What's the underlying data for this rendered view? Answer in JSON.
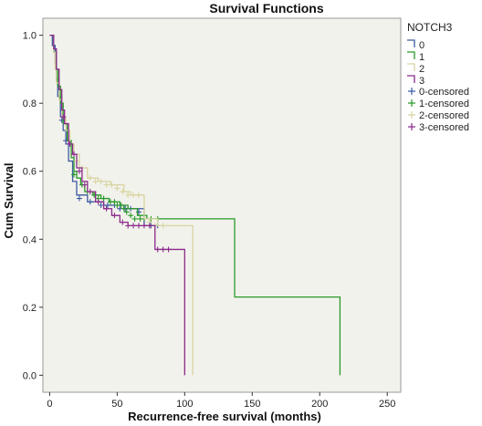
{
  "chart_data": {
    "type": "line",
    "title": "Survival Functions",
    "xlabel": "Recurrence-free survival (months)",
    "ylabel": "Cum Survival",
    "xlim": [
      -5,
      260
    ],
    "ylim": [
      -0.05,
      1.05
    ],
    "x_ticks": [
      0,
      50,
      100,
      150,
      200,
      250
    ],
    "y_ticks": [
      0.0,
      0.2,
      0.4,
      0.6,
      0.8,
      1.0
    ],
    "legend_title": "NOTCH3",
    "legend_position": "right",
    "plot_background": "#f2f2ec",
    "series": [
      {
        "name": "0",
        "censored_name": "0-censored",
        "color": "#3b5aa0",
        "steps": [
          [
            0,
            1.0
          ],
          [
            2,
            0.97
          ],
          [
            4,
            0.92
          ],
          [
            5,
            0.87
          ],
          [
            6,
            0.82
          ],
          [
            8,
            0.76
          ],
          [
            10,
            0.72
          ],
          [
            12,
            0.68
          ],
          [
            14,
            0.63
          ],
          [
            17,
            0.57
          ],
          [
            20,
            0.53
          ],
          [
            28,
            0.51
          ],
          [
            40,
            0.5
          ],
          [
            55,
            0.49
          ],
          [
            62,
            0.49
          ],
          [
            70,
            0.44
          ],
          [
            80,
            0.44
          ]
        ],
        "censor": [
          [
            9,
            0.75
          ],
          [
            12,
            0.69
          ],
          [
            22,
            0.52
          ],
          [
            30,
            0.51
          ],
          [
            38,
            0.5
          ],
          [
            43,
            0.5
          ],
          [
            48,
            0.5
          ],
          [
            52,
            0.49
          ],
          [
            56,
            0.49
          ],
          [
            60,
            0.49
          ],
          [
            66,
            0.48
          ],
          [
            75,
            0.44
          ],
          [
            80,
            0.44
          ]
        ]
      },
      {
        "name": "1",
        "censored_name": "1-censored",
        "color": "#2a9a2a",
        "steps": [
          [
            0,
            1.0
          ],
          [
            3,
            0.95
          ],
          [
            5,
            0.9
          ],
          [
            6,
            0.85
          ],
          [
            8,
            0.8
          ],
          [
            10,
            0.74
          ],
          [
            13,
            0.69
          ],
          [
            16,
            0.64
          ],
          [
            18,
            0.6
          ],
          [
            20,
            0.58
          ],
          [
            23,
            0.56
          ],
          [
            26,
            0.54
          ],
          [
            32,
            0.53
          ],
          [
            38,
            0.52
          ],
          [
            44,
            0.51
          ],
          [
            52,
            0.5
          ],
          [
            58,
            0.49
          ],
          [
            65,
            0.47
          ],
          [
            72,
            0.46
          ],
          [
            137,
            0.23
          ],
          [
            215,
            0.0
          ]
        ],
        "censor": [
          [
            18,
            0.59
          ],
          [
            24,
            0.56
          ],
          [
            28,
            0.54
          ],
          [
            33,
            0.53
          ],
          [
            36,
            0.52
          ],
          [
            40,
            0.52
          ],
          [
            45,
            0.51
          ],
          [
            48,
            0.51
          ],
          [
            50,
            0.5
          ],
          [
            53,
            0.5
          ],
          [
            55,
            0.49
          ],
          [
            57,
            0.48
          ],
          [
            60,
            0.47
          ],
          [
            63,
            0.46
          ],
          [
            67,
            0.46
          ],
          [
            70,
            0.46
          ],
          [
            75,
            0.46
          ],
          [
            80,
            0.46
          ]
        ]
      },
      {
        "name": "2",
        "censored_name": "2-censored",
        "color": "#d8d4a0",
        "steps": [
          [
            0,
            1.0
          ],
          [
            3,
            0.95
          ],
          [
            4,
            0.9
          ],
          [
            5,
            0.86
          ],
          [
            7,
            0.81
          ],
          [
            9,
            0.76
          ],
          [
            12,
            0.72
          ],
          [
            15,
            0.68
          ],
          [
            18,
            0.65
          ],
          [
            22,
            0.61
          ],
          [
            28,
            0.58
          ],
          [
            36,
            0.57
          ],
          [
            45,
            0.56
          ],
          [
            55,
            0.54
          ],
          [
            60,
            0.53
          ],
          [
            68,
            0.53
          ],
          [
            70,
            0.46
          ],
          [
            80,
            0.44
          ],
          [
            106,
            0.0
          ]
        ],
        "censor": [
          [
            20,
            0.63
          ],
          [
            24,
            0.61
          ],
          [
            30,
            0.58
          ],
          [
            34,
            0.57
          ],
          [
            38,
            0.57
          ],
          [
            42,
            0.56
          ],
          [
            46,
            0.56
          ],
          [
            50,
            0.55
          ],
          [
            54,
            0.54
          ],
          [
            58,
            0.53
          ],
          [
            62,
            0.53
          ],
          [
            66,
            0.53
          ],
          [
            74,
            0.45
          ],
          [
            78,
            0.44
          ],
          [
            84,
            0.44
          ]
        ]
      },
      {
        "name": "3",
        "censored_name": "3-censored",
        "color": "#8a2a8a",
        "steps": [
          [
            0,
            1.0
          ],
          [
            3,
            0.96
          ],
          [
            5,
            0.9
          ],
          [
            7,
            0.84
          ],
          [
            9,
            0.78
          ],
          [
            11,
            0.74
          ],
          [
            14,
            0.68
          ],
          [
            17,
            0.65
          ],
          [
            20,
            0.61
          ],
          [
            24,
            0.57
          ],
          [
            28,
            0.54
          ],
          [
            34,
            0.51
          ],
          [
            40,
            0.49
          ],
          [
            46,
            0.47
          ],
          [
            52,
            0.45
          ],
          [
            58,
            0.44
          ],
          [
            78,
            0.37
          ],
          [
            100,
            0.0
          ]
        ],
        "censor": [
          [
            10,
            0.76
          ],
          [
            15,
            0.68
          ],
          [
            18,
            0.65
          ],
          [
            22,
            0.6
          ],
          [
            26,
            0.56
          ],
          [
            30,
            0.54
          ],
          [
            36,
            0.51
          ],
          [
            42,
            0.49
          ],
          [
            48,
            0.47
          ],
          [
            54,
            0.45
          ],
          [
            58,
            0.44
          ],
          [
            62,
            0.44
          ],
          [
            66,
            0.44
          ],
          [
            70,
            0.44
          ],
          [
            74,
            0.44
          ],
          [
            80,
            0.37
          ],
          [
            84,
            0.37
          ],
          [
            88,
            0.37
          ]
        ]
      }
    ]
  }
}
